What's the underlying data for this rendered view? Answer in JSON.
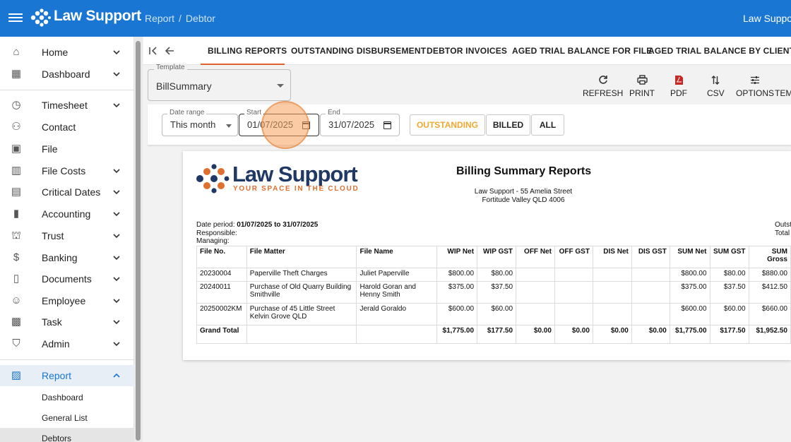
{
  "topbar": {
    "brand": "Law Support",
    "breadcrumb": [
      "Report",
      "Debtor"
    ],
    "breadcrumb_sep": "/",
    "user": "Law Support",
    "color": "#1976d2"
  },
  "sidebar": {
    "items": [
      {
        "label": "Home",
        "icon": "home-icon",
        "chevron": true
      },
      {
        "label": "Dashboard",
        "icon": "dashboard-icon",
        "chevron": true
      },
      {
        "label": "Timesheet",
        "icon": "stopwatch-icon",
        "chevron": true
      },
      {
        "label": "Contact",
        "icon": "people-icon",
        "chevron": false
      },
      {
        "label": "File",
        "icon": "briefcase-icon",
        "chevron": false
      },
      {
        "label": "File Costs",
        "icon": "building-icon",
        "chevron": true
      },
      {
        "label": "Critical Dates",
        "icon": "calendar-icon",
        "chevron": true
      },
      {
        "label": "Accounting",
        "icon": "bar-chart-icon",
        "chevron": true
      },
      {
        "label": "Trust",
        "icon": "bank-icon",
        "chevron": true
      },
      {
        "label": "Banking",
        "icon": "dollar-icon",
        "chevron": true
      },
      {
        "label": "Documents",
        "icon": "document-icon",
        "chevron": true
      },
      {
        "label": "Employee",
        "icon": "face-icon",
        "chevron": true
      },
      {
        "label": "Task",
        "icon": "task-chart-icon",
        "chevron": true
      },
      {
        "label": "Admin",
        "icon": "shield-icon",
        "chevron": true
      }
    ],
    "report": {
      "label": "Report",
      "icon": "report-icon"
    },
    "report_sub": [
      "Dashboard",
      "General List",
      "Debtors"
    ]
  },
  "tabs": [
    "BILLING REPORTS",
    "OUTSTANDING DISBURSEMENT",
    "DEBTOR INVOICES",
    "AGED TRIAL BALANCE FOR FILE",
    "AGED TRIAL BALANCE BY CLIENT"
  ],
  "template": {
    "legend": "Template",
    "value": "BillSummary"
  },
  "tools": [
    "REFRESH",
    "PRINT",
    "PDF",
    "CSV",
    "OPTIONS",
    "TEMPLATE"
  ],
  "filters": {
    "date_range": {
      "legend": "Date range",
      "value": "This month"
    },
    "start": {
      "legend": "Start",
      "value": "01/07/2025"
    },
    "end": {
      "legend": "End",
      "value": "31/07/2025"
    },
    "buttons": [
      "OUTSTANDING",
      "BILLED",
      "ALL"
    ]
  },
  "report": {
    "brand_name": "Law Support",
    "brand_tagline": "YOUR SPACE IN THE CLOUD",
    "title": "Billing Summary Reports",
    "address_line1": "Law Support - 55 Amelia Street",
    "address_line2": "Fortitude Valley QLD 4006",
    "date_period_label": "Date period:",
    "date_period_value": "01/07/2025 to 31/07/2025",
    "responsible_label": "Responsible:",
    "managing_label": "Managing:",
    "right_line1": "Outstanding",
    "right_line2": "Total",
    "columns": [
      "File No.",
      "File Matter",
      "File Name",
      "WIP Net",
      "WIP GST",
      "OFF Net",
      "OFF GST",
      "DIS Net",
      "DIS GST",
      "SUM Net",
      "SUM GST",
      "SUM Gross"
    ],
    "rows": [
      [
        "20230004",
        "Paperville Theft Charges",
        "Juliet Paperville",
        "$800.00",
        "$80.00",
        "",
        "",
        "",
        "",
        "$800.00",
        "$80.00",
        "$880.00"
      ],
      [
        "20240011",
        "Purchase of Old Quarry Building Smithville",
        "Harold Goran and Henny Smith",
        "$375.00",
        "$37.50",
        "",
        "",
        "",
        "",
        "$375.00",
        "$37.50",
        "$412.50"
      ],
      [
        "20250002KM",
        "Purchase of 45 Little Street Kelvin Grove QLD",
        "Jerald Goraldo",
        "$600.00",
        "$60.00",
        "",
        "",
        "",
        "",
        "$600.00",
        "$60.00",
        "$660.00"
      ]
    ],
    "total": [
      "Grand Total",
      "",
      "",
      "$1,775.00",
      "$177.50",
      "$0.00",
      "$0.00",
      "$0.00",
      "$0.00",
      "$1,775.00",
      "$177.50",
      "$1,952.50"
    ]
  }
}
